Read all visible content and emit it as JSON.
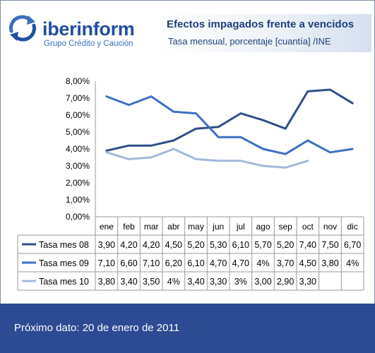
{
  "header": {
    "logo_name": "iberinform",
    "logo_tagline": "Grupo Crédito y Caución",
    "title": "Efectos impagados frente a vencidos",
    "subtitle": "Tasa mensual, porcentaje [cuantía] /INE"
  },
  "footer": {
    "text": "Próximo dato: 20 de enero de 2011"
  },
  "colors": {
    "footer_bg": "#2b4b93",
    "title": "#1f3f7a"
  },
  "chart_data": {
    "type": "line",
    "title": "",
    "xlabel": "",
    "ylabel": "",
    "ylim": [
      0,
      8
    ],
    "yticks": [
      "0,00%",
      "1,00%",
      "2,00%",
      "3,00%",
      "4,00%",
      "5,00%",
      "6,00%",
      "7,00%",
      "8,00%"
    ],
    "categories": [
      "ene",
      "feb",
      "mar",
      "abr",
      "may",
      "jun",
      "jul",
      "ago",
      "sep",
      "oct",
      "nov",
      "dic"
    ],
    "series": [
      {
        "name": "Tasa mes 08",
        "color": "#2f4f8a",
        "values": [
          3.9,
          4.2,
          4.2,
          4.5,
          5.2,
          5.3,
          6.1,
          5.7,
          5.2,
          7.4,
          7.5,
          6.7
        ],
        "labels": [
          "3,90",
          "4,20",
          "4,20",
          "4,50",
          "5,20",
          "5,30",
          "6,10",
          "5,70",
          "5,20",
          "7,40",
          "7,50",
          "6,70"
        ]
      },
      {
        "name": "Tasa mes 09",
        "color": "#3d6fc4",
        "values": [
          7.1,
          6.6,
          7.1,
          6.2,
          6.1,
          4.7,
          4.7,
          4.0,
          3.7,
          4.5,
          3.8,
          4.0
        ],
        "labels": [
          "7,10",
          "6,60",
          "7,10",
          "6,20",
          "6,10",
          "4,70",
          "4,70",
          "4%",
          "3,70",
          "4,50",
          "3,80",
          "4%"
        ]
      },
      {
        "name": "Tasa mes 10",
        "color": "#a3b8dc",
        "values": [
          3.8,
          3.4,
          3.5,
          4.0,
          3.4,
          3.3,
          3.3,
          3.0,
          2.9,
          3.3,
          null,
          null
        ],
        "labels": [
          "3,80",
          "3,40",
          "3,50",
          "4%",
          "3,40",
          "3,30",
          "3%",
          "3,00",
          "2,90",
          "3,30",
          "",
          ""
        ]
      }
    ],
    "grid": true,
    "legend": "table"
  }
}
